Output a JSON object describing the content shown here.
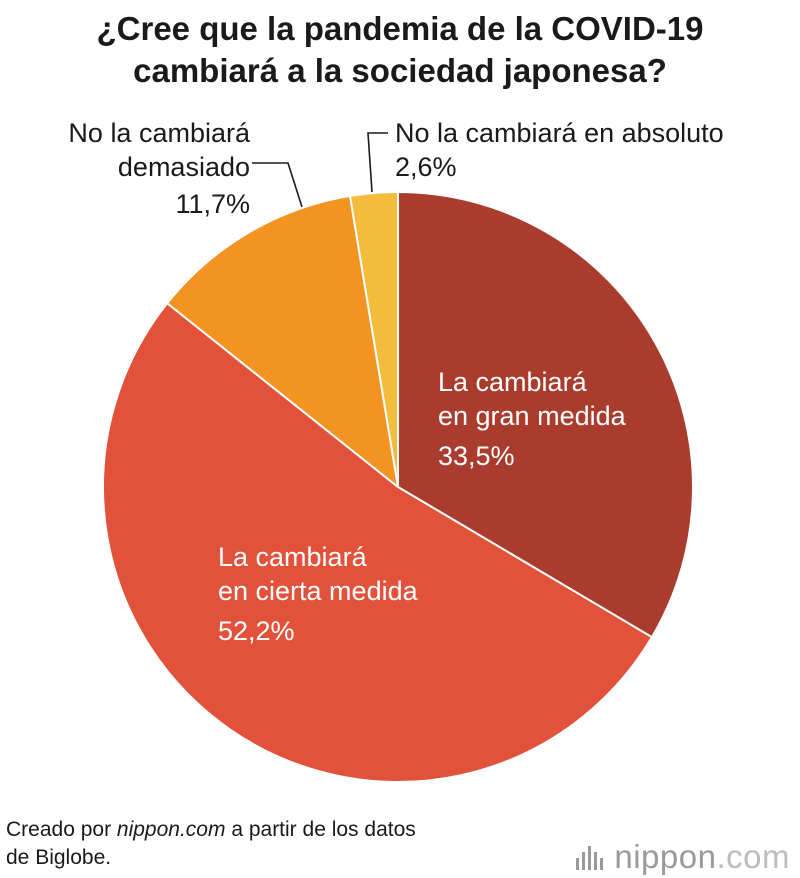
{
  "title": {
    "line1": "¿Cree que la pandemia de la COVID-19",
    "line2": "cambiará a la sociedad japonesa?"
  },
  "chart_data": {
    "type": "pie",
    "title": "¿Cree que la pandemia de la COVID-19 cambiará a la sociedad japonesa?",
    "slices": [
      {
        "label": "La cambiará en gran medida",
        "value": 33.5,
        "display": "33,5%",
        "color": "#a93c2d"
      },
      {
        "label": "La cambiará en cierta medida",
        "value": 52.2,
        "display": "52,2%",
        "color": "#e2523b"
      },
      {
        "label": "No la cambiará demasiado",
        "value": 11.7,
        "display": "11,7%",
        "color": "#f39322"
      },
      {
        "label": "No la cambiará en absoluto",
        "value": 2.6,
        "display": "2,6%",
        "color": "#f4bc3c"
      }
    ]
  },
  "labels": {
    "gran": {
      "line1": "La cambiará",
      "line2": "en gran medida",
      "value": "33,5%"
    },
    "cierta": {
      "line1": "La cambiará",
      "line2": "en cierta medida",
      "value": "52,2%"
    },
    "demasiado": {
      "line1": "No la cambiará",
      "line2": "demasiado",
      "value": "11,7%"
    },
    "absoluto": {
      "line1": "No la cambiará en absoluto",
      "value": "2,6%"
    }
  },
  "source": {
    "prefix": "Creado por ",
    "site": "nippon.com",
    "suffix": " a partir de los datos",
    "line2": "de Biglobe."
  },
  "logo": {
    "name": "nippon",
    "tld": ".com"
  }
}
